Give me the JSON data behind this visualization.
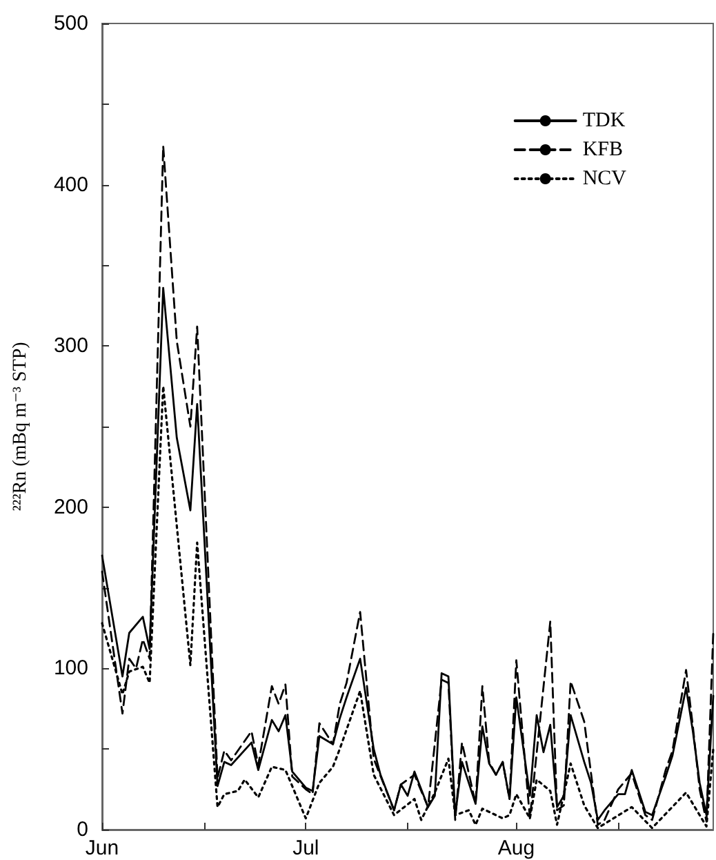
{
  "chart_data": {
    "type": "line",
    "ylabel": "²²²Rn (mBq m⁻³ STP)",
    "xlim": [
      "--06-01",
      "--08-30"
    ],
    "xticks": [
      {
        "value": "--06-01",
        "label": "Jun"
      },
      {
        "value": "--06-16",
        "label": null
      },
      {
        "value": "--07-01",
        "label": "Jul"
      },
      {
        "value": "--07-16",
        "label": null
      },
      {
        "value": "--08-01",
        "label": "Aug"
      },
      {
        "value": "--08-16",
        "label": null
      }
    ],
    "ylim": [
      0,
      500
    ],
    "yticks": [
      0,
      {
        "value": 50,
        "label": null
      },
      100,
      {
        "value": 150,
        "label": null
      },
      200,
      {
        "value": 250,
        "label": null
      },
      300,
      {
        "value": 350,
        "label": null
      },
      400,
      {
        "value": 450,
        "label": null
      },
      500
    ],
    "grid": false,
    "legend": "top right",
    "marker": "none",
    "series": [
      {
        "name": "TDK",
        "color": "#000000",
        "line_style": "solid",
        "x": [
          "--06-01",
          "--06-04",
          "--06-05",
          "--06-07",
          "--06-08",
          "--06-10",
          "--06-12",
          "--06-14",
          "--06-15",
          "--06-18",
          "--06-19",
          "--06-20",
          "--06-23",
          "--06-24",
          "--06-26",
          "--06-27",
          "--06-28",
          "--06-29",
          "--07-01",
          "--07-02",
          "--07-03",
          "--07-05",
          "--07-06",
          "--07-07",
          "--07-09",
          "--07-11",
          "--07-12",
          "--07-14",
          "--07-15",
          "--07-16",
          "--07-17",
          "--07-19",
          "--07-20",
          "--07-21",
          "--07-22",
          "--07-23",
          "--07-24",
          "--07-26",
          "--07-27",
          "--07-28",
          "--07-29",
          "--07-30",
          "--07-31",
          "--08-01",
          "--08-03",
          "--08-04",
          "--08-05",
          "--08-06",
          "--08-07",
          "--08-08",
          "--08-09",
          "--08-11",
          "--08-12",
          "--08-13",
          "--08-14",
          "--08-16",
          "--08-17",
          "--08-18",
          "--08-20",
          "--08-21",
          "--08-23",
          "--08-24",
          "--08-26",
          "--08-27",
          "--08-28",
          "--08-29",
          "--08-30"
        ],
        "values": [
          170,
          95,
          122,
          132,
          112,
          336,
          243,
          198,
          264,
          27,
          42,
          40,
          54,
          37,
          68,
          61,
          71,
          36,
          26,
          24,
          58,
          53,
          69,
          82,
          106,
          50,
          34,
          12,
          28,
          21,
          36,
          14,
          21,
          97,
          95,
          9,
          42,
          16,
          64,
          41,
          34,
          42,
          19,
          82,
          21,
          71,
          48,
          65,
          14,
          21,
          71,
          42,
          29,
          6,
          12,
          22,
          22,
          37,
          11,
          9,
          33,
          46,
          88,
          61,
          29,
          9,
          83
        ]
      },
      {
        "name": "KFB",
        "color": "#000000",
        "line_style": "dashed",
        "x": [
          "--06-01",
          "--06-04",
          "--06-05",
          "--06-06",
          "--06-07",
          "--06-08",
          "--06-10",
          "--06-12",
          "--06-14",
          "--06-15",
          "--06-18",
          "--06-19",
          "--06-20",
          "--06-23",
          "--06-24",
          "--06-26",
          "--06-27",
          "--06-28",
          "--06-29",
          "--07-01",
          "--07-02",
          "--07-03",
          "--07-05",
          "--07-06",
          "--07-07",
          "--07-09",
          "--07-11",
          "--07-14",
          "--07-15",
          "--07-17",
          "--07-19",
          "--07-21",
          "--07-22",
          "--07-23",
          "--07-24",
          "--07-26",
          "--07-27",
          "--07-28",
          "--07-29",
          "--07-30",
          "--07-31",
          "--08-01",
          "--08-03",
          "--08-06",
          "--08-07",
          "--08-08",
          "--08-09",
          "--08-11",
          "--08-13",
          "--08-14",
          "--08-16",
          "--08-18",
          "--08-20",
          "--08-21",
          "--08-23",
          "--08-24",
          "--08-26",
          "--08-27",
          "--08-28",
          "--08-29",
          "--08-30"
        ],
        "values": [
          160,
          72,
          106,
          100,
          118,
          106,
          424,
          303,
          250,
          312,
          32,
          49,
          43,
          61,
          40,
          89,
          78,
          90,
          33,
          25,
          22,
          66,
          53,
          78,
          91,
          135,
          44,
          12,
          28,
          34,
          14,
          93,
          91,
          6,
          54,
          16,
          89,
          42,
          34,
          42,
          19,
          105,
          7,
          129,
          12,
          15,
          92,
          67,
          3,
          6,
          25,
          35,
          9,
          6,
          37,
          49,
          99,
          64,
          25,
          5,
          122
        ]
      },
      {
        "name": "NCV",
        "color": "#000000",
        "line_style": "dotted",
        "x": [
          "--06-01",
          "--06-04",
          "--06-05",
          "--06-07",
          "--06-08",
          "--06-10",
          "--06-14",
          "--06-15",
          "--06-18",
          "--06-19",
          "--06-21",
          "--06-22",
          "--06-24",
          "--06-26",
          "--06-28",
          "--06-29",
          "--07-01",
          "--07-03",
          "--07-05",
          "--07-06",
          "--07-09",
          "--07-11",
          "--07-14",
          "--07-17",
          "--07-18",
          "--07-20",
          "--07-22",
          "--07-23",
          "--07-25",
          "--07-26",
          "--07-27",
          "--07-30",
          "--07-31",
          "--08-01",
          "--08-03",
          "--08-04",
          "--08-06",
          "--08-07",
          "--08-09",
          "--08-11",
          "--08-13",
          "--08-18",
          "--08-21",
          "--08-26",
          "--08-29",
          "--08-30"
        ],
        "values": [
          128,
          84,
          98,
          101,
          91,
          275,
          102,
          178,
          14,
          22,
          24,
          31,
          20,
          39,
          37,
          27,
          7,
          29,
          39,
          50,
          86,
          34,
          9,
          19,
          6,
          23,
          44,
          9,
          12,
          3,
          13,
          7,
          9,
          22,
          7,
          31,
          24,
          3,
          41,
          15,
          1,
          14,
          1,
          23,
          2,
          50
        ]
      }
    ]
  }
}
